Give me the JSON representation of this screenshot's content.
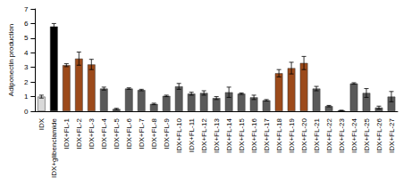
{
  "chart_data": {
    "type": "bar",
    "y_label": "Adiponectin production",
    "categories": [
      "IDX",
      "IDX+glibenclamide",
      "IDX+FL-1",
      "IDX+FL-2",
      "IDX+FL-3",
      "IDX+FL-4",
      "IDX+FL-5",
      "IDX+FL-6",
      "IDX+FL-7",
      "IDX+FL-8",
      "IDX+FL-9",
      "IDX+FL-10",
      "IDX+FL-11",
      "IDX+FL-12",
      "IDX+FL-13",
      "IDX+FL-14",
      "IDX+FL-15",
      "IDX+FL-16",
      "IDX+FL-17",
      "IDX+FL-18",
      "IDX+FL-19",
      "IDX+FL-20",
      "IDX+FL-21",
      "IDX+FL-22",
      "IDX+FL-23",
      "IDX+FL-24",
      "IDX+FL-25",
      "IDX+FL-26",
      "IDX+FL-27"
    ],
    "values": [
      1.0,
      5.8,
      3.15,
      3.6,
      3.2,
      1.55,
      0.15,
      1.55,
      1.45,
      0.5,
      1.05,
      1.7,
      1.2,
      1.25,
      0.9,
      1.3,
      1.2,
      0.95,
      0.75,
      2.6,
      2.95,
      3.3,
      1.55,
      0.35,
      0.05,
      1.9,
      1.25,
      0.25,
      1.0
    ],
    "errors": [
      0.1,
      0.2,
      0.1,
      0.45,
      0.35,
      0.1,
      0.05,
      0.05,
      0.05,
      0.05,
      0.05,
      0.2,
      0.1,
      0.15,
      0.1,
      0.35,
      0.05,
      0.15,
      0.05,
      0.25,
      0.4,
      0.45,
      0.15,
      0.05,
      0.02,
      0.05,
      0.3,
      0.1,
      0.35
    ],
    "colors": [
      "#d9d9d9",
      "#000000",
      "#9c4a1a",
      "#9c4a1a",
      "#9c4a1a",
      "#595959",
      "#595959",
      "#595959",
      "#595959",
      "#595959",
      "#595959",
      "#595959",
      "#595959",
      "#595959",
      "#595959",
      "#595959",
      "#595959",
      "#595959",
      "#595959",
      "#9c4a1a",
      "#9c4a1a",
      "#9c4a1a",
      "#595959",
      "#595959",
      "#595959",
      "#595959",
      "#595959",
      "#595959",
      "#595959"
    ],
    "ylim": [
      0,
      7
    ],
    "yticks": [
      0,
      1,
      2,
      3,
      4,
      5,
      6,
      7
    ],
    "grid": false
  }
}
